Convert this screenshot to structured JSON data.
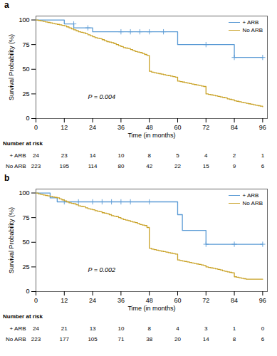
{
  "chart_data": [
    {
      "type": "step",
      "title": "a",
      "x_label": "Time (in months)",
      "y_label": "Survival Probability (%)",
      "xlim": [
        0,
        98
      ],
      "ylim": [
        0,
        104
      ],
      "xticks": [
        0,
        12,
        24,
        36,
        48,
        60,
        72,
        84,
        96
      ],
      "yticks": [
        0,
        25,
        50,
        75,
        100
      ],
      "grid": false,
      "legend": "upper right",
      "annotations": [
        {
          "text": "P = 0.004",
          "x": 22,
          "y": 22
        }
      ],
      "series": [
        {
          "name": "+ ARB",
          "color": "#5B9BD5",
          "marker": "plus",
          "x": [
            0,
            12,
            12,
            16,
            24,
            24,
            48,
            54,
            60,
            60,
            72,
            84,
            96
          ],
          "values": [
            100,
            100,
            96,
            92,
            92,
            88,
            88,
            88,
            75,
            75,
            75,
            62,
            62
          ],
          "censored": {
            "x": [
              16,
              22,
              36,
              40,
              44,
              48,
              54,
              72,
              84,
              96
            ],
            "values": [
              96,
              92,
              88,
              88,
              88,
              88,
              88,
              75,
              62,
              62
            ]
          }
        },
        {
          "name": "No ARB",
          "color": "#C9A227",
          "x": [
            0,
            1,
            2,
            3,
            4,
            5,
            6,
            7,
            8,
            9,
            10,
            11,
            12,
            13,
            14,
            15,
            16,
            17,
            18,
            19,
            20,
            21,
            22,
            23,
            24,
            25,
            26,
            27,
            28,
            29,
            30,
            31,
            32,
            33,
            34,
            35,
            36,
            37,
            38,
            39,
            40,
            41,
            42,
            43,
            44,
            45,
            46,
            47,
            48,
            49,
            50,
            51,
            52,
            53,
            54,
            55,
            56,
            57,
            58,
            59,
            60,
            61,
            62,
            63,
            64,
            65,
            66,
            67,
            68,
            69,
            70,
            71,
            72,
            73,
            74,
            75,
            76,
            77,
            78,
            79,
            80,
            81,
            82,
            83,
            84,
            85,
            86,
            87,
            88,
            89,
            90,
            91,
            92,
            93,
            94,
            95,
            96
          ],
          "values": [
            100,
            99.5,
            99,
            98.5,
            98,
            97.5,
            97,
            96.5,
            96,
            95.5,
            95,
            94.5,
            94,
            93,
            92,
            91,
            90,
            89,
            88,
            87.5,
            87,
            86,
            85,
            84,
            83,
            82,
            81.5,
            81,
            80,
            79,
            78,
            77.5,
            77,
            76,
            75,
            74,
            73,
            72,
            71.5,
            71,
            70,
            69,
            68,
            67.5,
            67,
            66,
            65,
            64,
            48,
            47,
            46.5,
            46,
            45.5,
            45,
            44.5,
            44,
            43.5,
            43,
            42.5,
            42,
            38,
            37.5,
            37,
            36.5,
            36,
            35.5,
            35,
            34.5,
            34,
            33.5,
            33,
            32.5,
            25,
            24.5,
            24,
            23.5,
            23,
            22.5,
            22,
            21.5,
            21,
            20,
            19.5,
            19,
            18,
            17.5,
            17,
            16.5,
            16,
            15.5,
            15,
            14.5,
            14,
            13.5,
            13,
            12.5,
            12
          ]
        }
      ],
      "risk_table": {
        "title": "Number at risk",
        "x": [
          0,
          12,
          24,
          36,
          48,
          60,
          72,
          84,
          96
        ],
        "rows": [
          {
            "name": "+ ARB",
            "values": [
              24,
              23,
              14,
              10,
              8,
              5,
              4,
              2,
              1
            ]
          },
          {
            "name": "No ARB",
            "values": [
              223,
              195,
              114,
              80,
              42,
              22,
              15,
              9,
              6
            ]
          }
        ]
      }
    },
    {
      "type": "step",
      "title": "b",
      "x_label": "Time (in months)",
      "y_label": "Survival Probability (%)",
      "xlim": [
        0,
        98
      ],
      "ylim": [
        0,
        104
      ],
      "xticks": [
        0,
        12,
        24,
        36,
        48,
        60,
        72,
        84,
        96
      ],
      "yticks": [
        0,
        25,
        50,
        75,
        100
      ],
      "grid": false,
      "legend": "upper right",
      "annotations": [
        {
          "text": "P = 0.002",
          "x": 22,
          "y": 22
        }
      ],
      "series": [
        {
          "name": "+ ARB",
          "color": "#5B9BD5",
          "marker": "plus",
          "x": [
            0,
            6,
            6,
            9,
            12,
            48,
            60,
            60,
            62,
            68,
            72,
            72,
            84,
            84,
            96
          ],
          "values": [
            100,
            100,
            95,
            91,
            91,
            91,
            91,
            78,
            62,
            62,
            48,
            48,
            48,
            48,
            48
          ],
          "censored": {
            "x": [
              12,
              18,
              24,
              28,
              32,
              36,
              40,
              48,
              72,
              84,
              96
            ],
            "values": [
              91,
              91,
              91,
              91,
              91,
              91,
              91,
              91,
              48,
              48,
              48
            ]
          }
        },
        {
          "name": "No ARB",
          "color": "#C9A227",
          "x": [
            0,
            1,
            2,
            3,
            4,
            5,
            6,
            7,
            8,
            9,
            10,
            11,
            12,
            13,
            14,
            15,
            16,
            17,
            18,
            19,
            20,
            21,
            22,
            23,
            24,
            25,
            26,
            27,
            28,
            29,
            30,
            31,
            32,
            33,
            34,
            35,
            36,
            37,
            38,
            39,
            40,
            41,
            42,
            43,
            44,
            45,
            46,
            47,
            48,
            49,
            50,
            51,
            52,
            53,
            54,
            55,
            56,
            57,
            58,
            59,
            60,
            61,
            62,
            63,
            64,
            65,
            66,
            67,
            68,
            69,
            70,
            71,
            72,
            73,
            74,
            75,
            76,
            77,
            78,
            79,
            80,
            81,
            82,
            83,
            84,
            85,
            86,
            87,
            88,
            89,
            90,
            91,
            92,
            93,
            94,
            95,
            96
          ],
          "values": [
            100,
            99,
            98.5,
            98,
            97.5,
            97,
            96.5,
            96,
            95.5,
            95,
            94,
            93,
            92,
            91,
            90,
            89.5,
            89,
            88,
            87,
            86.5,
            86,
            85,
            84,
            83.5,
            83,
            82,
            81.5,
            81,
            80,
            79.5,
            79,
            78,
            77,
            76.5,
            76,
            75,
            74,
            73,
            72.5,
            72,
            71,
            70.5,
            70,
            69,
            68,
            67.5,
            67,
            65,
            44,
            43,
            42.5,
            42,
            41.5,
            41,
            40.5,
            40,
            39.5,
            39,
            38.5,
            38,
            32,
            31.5,
            31,
            30.5,
            30,
            29.5,
            29,
            28.5,
            28,
            27.5,
            27,
            26.5,
            25,
            24.5,
            24,
            23.5,
            23,
            22.5,
            22,
            21,
            20.5,
            20,
            19.5,
            19,
            15,
            14.5,
            14,
            13.5,
            13,
            12.5,
            12.5,
            12.5,
            12.5,
            12.5,
            12.5,
            12.5,
            12.5
          ]
        }
      ],
      "risk_table": {
        "title": "Number at risk",
        "x": [
          0,
          12,
          24,
          36,
          48,
          60,
          72,
          84,
          96
        ],
        "rows": [
          {
            "name": "+ ARB",
            "values": [
              24,
              21,
              13,
              10,
              8,
              4,
              3,
              1,
              0
            ]
          },
          {
            "name": "No ARB",
            "values": [
              223,
              177,
              105,
              71,
              38,
              20,
              14,
              8,
              6
            ]
          }
        ]
      }
    }
  ]
}
